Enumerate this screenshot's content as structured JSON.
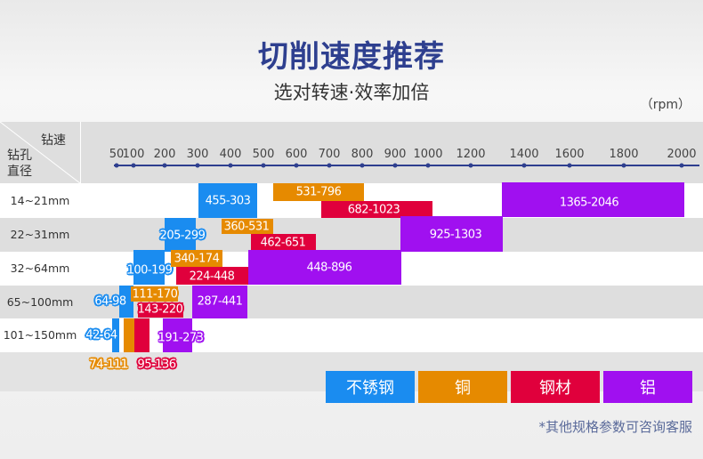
{
  "header": {
    "title": "切削速度推荐",
    "subtitle": "选对转速·效率加倍",
    "unit": "（rpm）"
  },
  "corner": {
    "top_label": "钻速",
    "bottom_label_1": "钻孔",
    "bottom_label_2": "直径"
  },
  "chart_data": {
    "type": "bar",
    "orientation": "horizontal-range",
    "xlabel": "钻速",
    "ylabel": "钻孔直径",
    "unit": "（rpm）",
    "x_ticks": [
      50,
      100,
      200,
      300,
      400,
      500,
      600,
      700,
      800,
      900,
      1000,
      1200,
      1400,
      1600,
      1800,
      2000
    ],
    "x_scale": "non-linear",
    "categories": [
      "14~21mm",
      "22~31mm",
      "32~64mm",
      "65~100mm",
      "101~150mm"
    ],
    "series": [
      {
        "name": "不锈钢",
        "color": "#1a8cf0",
        "labels": [
          "455-303",
          "205-299",
          "100-199",
          "64-98",
          "42-64"
        ]
      },
      {
        "name": "铜",
        "color": "#e68a00",
        "labels": [
          "531-796",
          "360-531",
          "340-174",
          "111-170",
          "74-111"
        ]
      },
      {
        "name": "钢材",
        "color": "#e0003c",
        "labels": [
          "682-1023",
          "462-651",
          "224-448",
          "143-220",
          "95-136"
        ]
      },
      {
        "name": "铝",
        "color": "#a010f0",
        "labels": [
          "1365-2046",
          "925-1303",
          "448-896",
          "287-441",
          "191-273"
        ]
      }
    ],
    "legend": "bottom-right"
  },
  "footer": "*其他规格参数可咨询客服"
}
